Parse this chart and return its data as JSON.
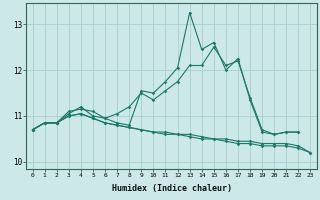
{
  "xlabel": "Humidex (Indice chaleur)",
  "ylabel": "",
  "bg_color": "#cce8e8",
  "grid_color": "#a8d0cc",
  "line_color": "#1a7a6a",
  "xlim": [
    -0.5,
    23.5
  ],
  "ylim": [
    9.85,
    13.45
  ],
  "yticks": [
    10,
    11,
    12,
    13
  ],
  "xticks": [
    0,
    1,
    2,
    3,
    4,
    5,
    6,
    7,
    8,
    9,
    10,
    11,
    12,
    13,
    14,
    15,
    16,
    17,
    18,
    19,
    20,
    21,
    22,
    23
  ],
  "series": [
    [
      10.7,
      10.85,
      10.85,
      11.05,
      11.2,
      11.0,
      10.95,
      10.85,
      10.8,
      11.55,
      11.5,
      11.75,
      12.05,
      13.25,
      12.45,
      12.6,
      12.0,
      12.25,
      11.35,
      10.65,
      10.6,
      10.65,
      10.65,
      null
    ],
    [
      10.7,
      10.85,
      10.85,
      11.1,
      11.15,
      11.1,
      10.95,
      11.05,
      11.2,
      11.5,
      11.35,
      11.55,
      11.75,
      12.1,
      12.1,
      12.5,
      12.1,
      12.2,
      11.4,
      10.7,
      10.6,
      10.65,
      10.65,
      null
    ],
    [
      10.7,
      10.85,
      10.85,
      11.0,
      11.05,
      10.95,
      10.85,
      10.8,
      10.75,
      10.7,
      10.65,
      10.65,
      10.6,
      10.6,
      10.55,
      10.5,
      10.5,
      10.45,
      10.45,
      10.4,
      10.4,
      10.4,
      10.35,
      10.2
    ],
    [
      10.7,
      10.85,
      10.85,
      11.0,
      11.05,
      10.95,
      10.85,
      10.8,
      10.75,
      10.7,
      10.65,
      10.6,
      10.6,
      10.55,
      10.5,
      10.5,
      10.45,
      10.4,
      10.4,
      10.35,
      10.35,
      10.35,
      10.3,
      10.2
    ]
  ]
}
